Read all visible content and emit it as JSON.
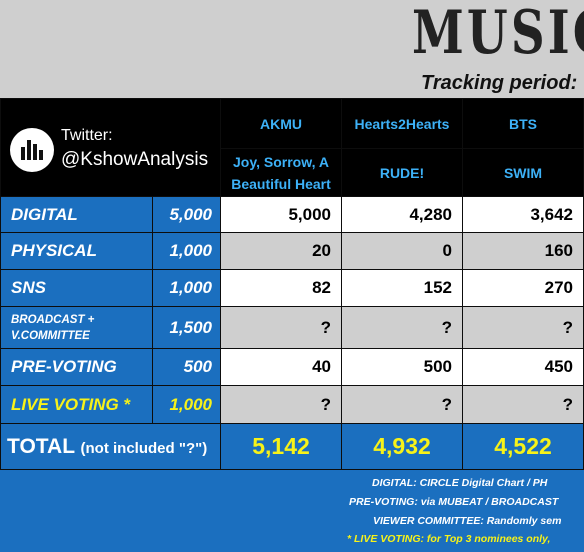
{
  "header": {
    "title": "MUSIC C",
    "tracking": "Tracking period:"
  },
  "twitter": {
    "label": "Twitter:",
    "handle": "@KshowAnalysis"
  },
  "artists": [
    {
      "name": "AKMU",
      "song": "Joy, Sorrow, A Beautiful Heart"
    },
    {
      "name": "Hearts2Hearts",
      "song": "RUDE!"
    },
    {
      "name": "BTS",
      "song": "SWIM"
    }
  ],
  "rows": [
    {
      "label": "DIGITAL",
      "points": "5,000",
      "values": [
        "5,000",
        "4,280",
        "3,642"
      ]
    },
    {
      "label": "PHYSICAL",
      "points": "1,000",
      "values": [
        "20",
        "0",
        "160"
      ]
    },
    {
      "label": "SNS",
      "points": "1,000",
      "values": [
        "82",
        "152",
        "270"
      ]
    },
    {
      "label": "BROADCAST + V.COMMITTEE",
      "points": "1,500",
      "values": [
        "?",
        "?",
        "?"
      ]
    },
    {
      "label": "PRE-VOTING",
      "points": "500",
      "values": [
        "40",
        "500",
        "450"
      ]
    },
    {
      "label": "LIVE VOTING *",
      "points": "1,000",
      "values": [
        "?",
        "?",
        "?"
      ]
    }
  ],
  "total": {
    "label": "TOTAL",
    "note": "(not included \"?\")",
    "values": [
      "5,142",
      "4,932",
      "4,522"
    ]
  },
  "notes": {
    "line1": "DIGITAL:  CIRCLE Digital Chart /  PH",
    "line2": "PRE-VOTING:  via MUBEAT /  BROADCAST",
    "line3": "VIEWER COMMITTEE:  Randomly sem",
    "line4": "* LIVE VOTING:  for Top 3 nominees only,"
  },
  "colors": {
    "blue": "#1b6fbf",
    "yellow": "#f7f219",
    "artist_blue": "#3db1f7",
    "gray": "#cfcfcf"
  }
}
